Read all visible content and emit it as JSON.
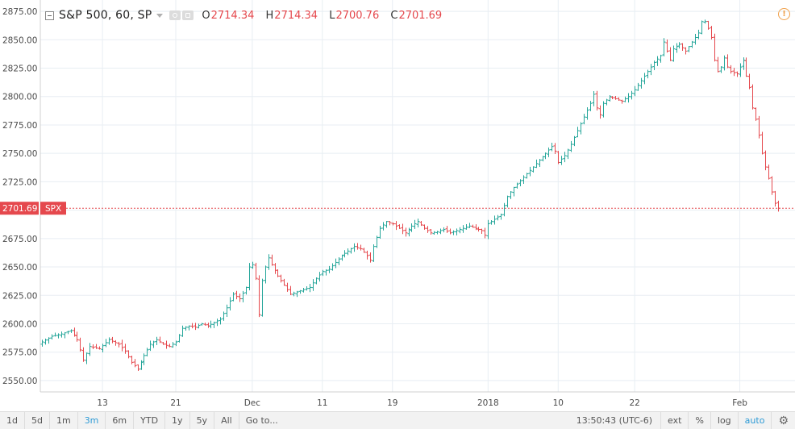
{
  "legend": {
    "symbol": "S&P 500, 60, SP",
    "open_label": "O",
    "open": "2714.34",
    "high_label": "H",
    "high": "2714.34",
    "low_label": "L",
    "low": "2700.76",
    "close_label": "C",
    "close": "2701.69"
  },
  "price_marker": {
    "value": "2701.69",
    "label": "SPX",
    "color": "#e5484d"
  },
  "toolbar": {
    "ranges": [
      "1d",
      "5d",
      "1m",
      "3m",
      "6m",
      "YTD",
      "1y",
      "5y",
      "All"
    ],
    "active_range": "3m",
    "goto": "Go to...",
    "time": "13:50:43 (UTC-6)",
    "ext": "ext",
    "percent": "%",
    "log": "log",
    "auto": "auto"
  },
  "colors": {
    "up": "#26a69a",
    "down": "#e5484d",
    "grid": "#e8eef3"
  },
  "chart_data": {
    "type": "ohlc",
    "title": "S&P 500, 60, SP",
    "ylim": [
      2540,
      2885
    ],
    "yticks": [
      2550,
      2575,
      2600,
      2625,
      2650,
      2675,
      2700,
      2725,
      2750,
      2775,
      2800,
      2825,
      2850,
      2875
    ],
    "ytick_labels": [
      "2550.00",
      "2575.00",
      "2600.00",
      "2625.00",
      "2650.00",
      "2675.00",
      "2700.00",
      "2725.00",
      "2750.00",
      "2775.00",
      "2800.00",
      "2825.00",
      "2850.00",
      "2875.00"
    ],
    "xticks": [
      "13",
      "21",
      "Dec",
      "11",
      "19",
      "2018",
      "10",
      "22",
      "Feb"
    ],
    "grid": true,
    "last_value": 2701.69,
    "series_path": [
      [
        0,
        2584
      ],
      [
        3,
        2589
      ],
      [
        6,
        2591
      ],
      [
        9,
        2594
      ],
      [
        11,
        2586
      ],
      [
        13,
        2568
      ],
      [
        15,
        2580
      ],
      [
        18,
        2578
      ],
      [
        21,
        2586
      ],
      [
        24,
        2582
      ],
      [
        26,
        2576
      ],
      [
        28,
        2566
      ],
      [
        30,
        2560
      ],
      [
        32,
        2572
      ],
      [
        34,
        2582
      ],
      [
        36,
        2586
      ],
      [
        38,
        2582
      ],
      [
        40,
        2580
      ],
      [
        42,
        2584
      ],
      [
        44,
        2596
      ],
      [
        46,
        2598
      ],
      [
        48,
        2597
      ],
      [
        50,
        2600
      ],
      [
        52,
        2598
      ],
      [
        54,
        2601
      ],
      [
        56,
        2604
      ],
      [
        58,
        2614
      ],
      [
        60,
        2626
      ],
      [
        62,
        2622
      ],
      [
        64,
        2632
      ],
      [
        65,
        2650
      ],
      [
        66,
        2652
      ],
      [
        67,
        2640
      ],
      [
        68,
        2608
      ],
      [
        69,
        2638
      ],
      [
        70,
        2650
      ],
      [
        71,
        2658
      ],
      [
        72,
        2652
      ],
      [
        74,
        2642
      ],
      [
        76,
        2634
      ],
      [
        78,
        2626
      ],
      [
        80,
        2628
      ],
      [
        82,
        2630
      ],
      [
        84,
        2632
      ],
      [
        86,
        2640
      ],
      [
        88,
        2646
      ],
      [
        90,
        2648
      ],
      [
        92,
        2654
      ],
      [
        94,
        2660
      ],
      [
        96,
        2664
      ],
      [
        98,
        2668
      ],
      [
        100,
        2666
      ],
      [
        102,
        2660
      ],
      [
        103,
        2656
      ],
      [
        104,
        2668
      ],
      [
        106,
        2684
      ],
      [
        108,
        2690
      ],
      [
        110,
        2688
      ],
      [
        112,
        2684
      ],
      [
        114,
        2680
      ],
      [
        116,
        2686
      ],
      [
        118,
        2690
      ],
      [
        120,
        2684
      ],
      [
        122,
        2680
      ],
      [
        124,
        2681
      ],
      [
        126,
        2683
      ],
      [
        128,
        2680
      ],
      [
        130,
        2682
      ],
      [
        132,
        2684
      ],
      [
        134,
        2686
      ],
      [
        136,
        2684
      ],
      [
        138,
        2682
      ],
      [
        139,
        2678
      ],
      [
        140,
        2688
      ],
      [
        142,
        2692
      ],
      [
        144,
        2696
      ],
      [
        146,
        2712
      ],
      [
        148,
        2720
      ],
      [
        150,
        2726
      ],
      [
        152,
        2732
      ],
      [
        154,
        2738
      ],
      [
        156,
        2744
      ],
      [
        158,
        2750
      ],
      [
        160,
        2756
      ],
      [
        161,
        2752
      ],
      [
        162,
        2742
      ],
      [
        164,
        2748
      ],
      [
        166,
        2758
      ],
      [
        168,
        2770
      ],
      [
        170,
        2782
      ],
      [
        172,
        2794
      ],
      [
        173,
        2802
      ],
      [
        174,
        2790
      ],
      [
        175,
        2784
      ],
      [
        176,
        2794
      ],
      [
        178,
        2800
      ],
      [
        180,
        2798
      ],
      [
        182,
        2796
      ],
      [
        184,
        2800
      ],
      [
        186,
        2806
      ],
      [
        188,
        2814
      ],
      [
        190,
        2822
      ],
      [
        192,
        2830
      ],
      [
        194,
        2836
      ],
      [
        195,
        2848
      ],
      [
        196,
        2840
      ],
      [
        197,
        2832
      ],
      [
        198,
        2842
      ],
      [
        200,
        2846
      ],
      [
        202,
        2840
      ],
      [
        204,
        2848
      ],
      [
        206,
        2856
      ],
      [
        207,
        2866
      ],
      [
        208,
        2866
      ],
      [
        209,
        2860
      ],
      [
        210,
        2852
      ],
      [
        211,
        2832
      ],
      [
        212,
        2822
      ],
      [
        213,
        2826
      ],
      [
        214,
        2834
      ],
      [
        215,
        2826
      ],
      [
        216,
        2822
      ],
      [
        218,
        2820
      ],
      [
        219,
        2826
      ],
      [
        220,
        2832
      ],
      [
        221,
        2818
      ],
      [
        222,
        2808
      ],
      [
        223,
        2790
      ],
      [
        224,
        2780
      ],
      [
        225,
        2766
      ],
      [
        226,
        2750
      ],
      [
        227,
        2738
      ],
      [
        228,
        2728
      ],
      [
        229,
        2716
      ],
      [
        230,
        2706
      ],
      [
        231,
        2701.69
      ]
    ]
  }
}
